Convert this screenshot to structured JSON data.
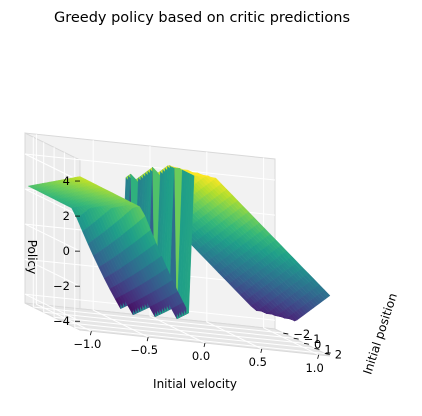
{
  "chart_data": {
    "type": "surface3d",
    "title": "Greedy policy based on critic predictions",
    "xlabel": "Initial velocity",
    "ylabel": "Initial position",
    "zlabel": "Policy",
    "xlim": [
      -1.1,
      1.1
    ],
    "ylim": [
      -2.8,
      2.5
    ],
    "zlim": [
      -4.5,
      5.2
    ],
    "x_ticks": [
      -1.0,
      -0.5,
      0.0,
      0.5,
      1.0
    ],
    "x_tick_labels": [
      "−1.0",
      "−0.5",
      "0.0",
      "0.5",
      "1.0"
    ],
    "y_ticks": [
      -2,
      -1,
      0,
      1,
      2
    ],
    "y_tick_labels": [
      "−2",
      "−1",
      "0",
      "1",
      "2"
    ],
    "z_ticks": [
      -4,
      -2,
      0,
      2,
      4
    ],
    "z_tick_labels": [
      "−4",
      "−2",
      "0",
      "2",
      "4"
    ],
    "colormap": "viridis",
    "grid": true,
    "surface": {
      "description_values": {
        "left_plane": "policy ≈ 2 + 2.5·(v + 1) at v < 0, sloping with position",
        "right_plane": "policy ≈ 4.5 at v ≈ 0 decreasing to ≈ -2 at v ≈ 1.1",
        "valley": "policy ≈ -4.5 near v ≈ -0.3, position ≈ -1"
      }
    }
  }
}
